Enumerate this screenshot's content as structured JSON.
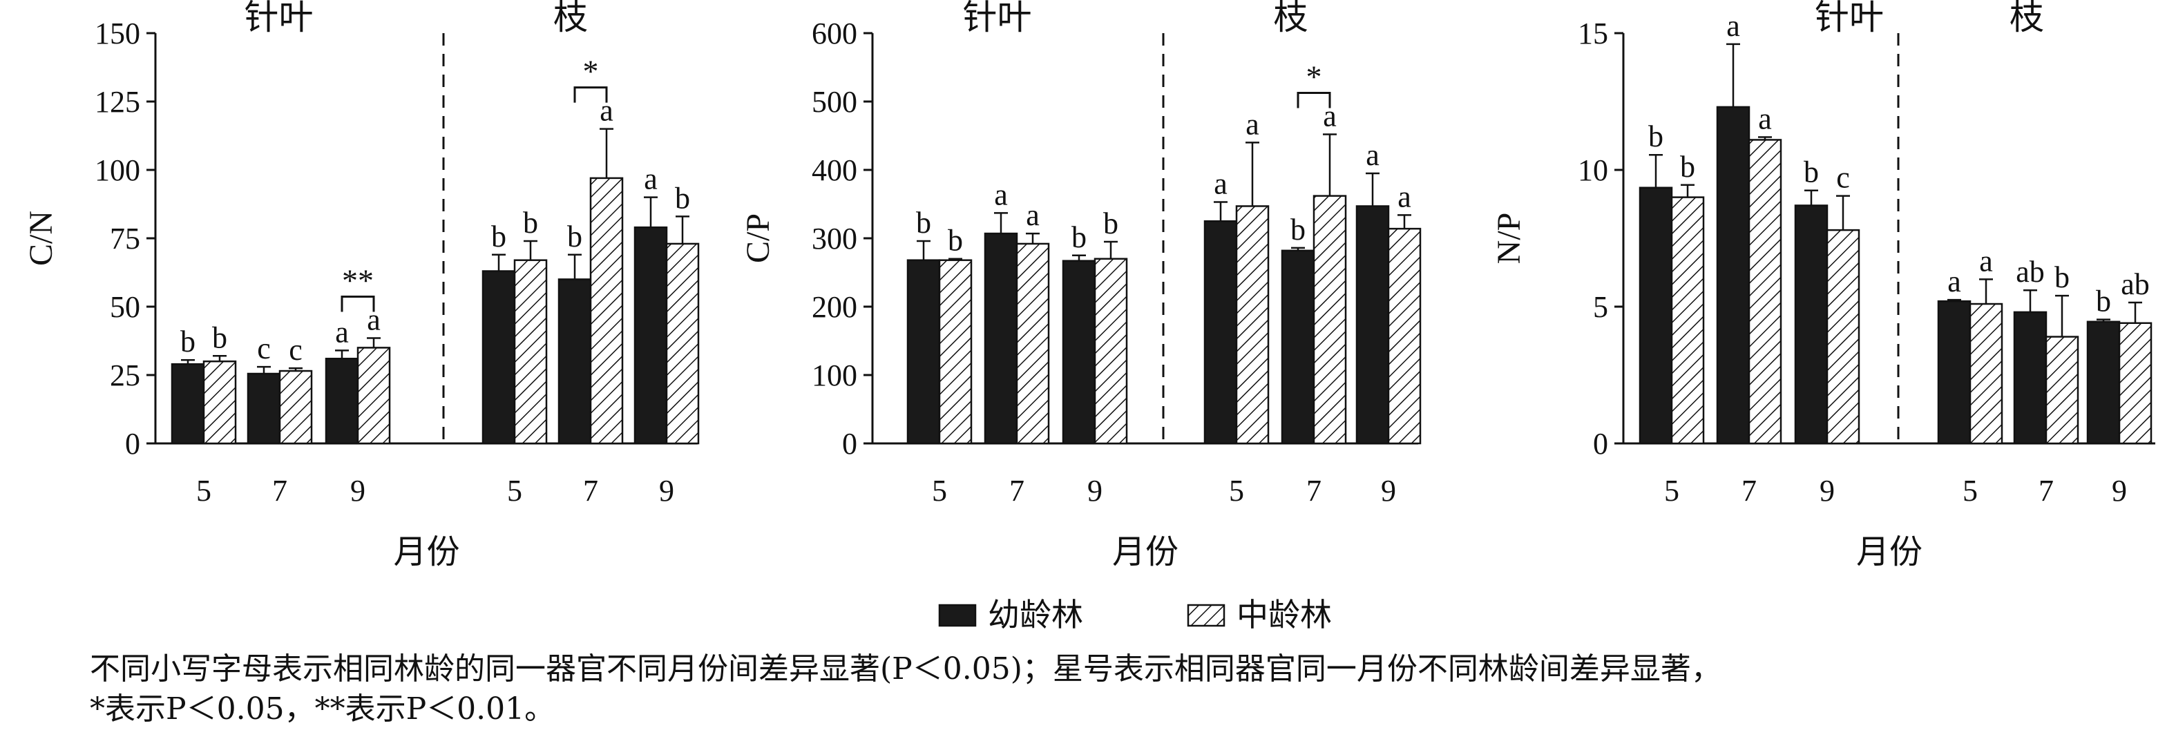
{
  "legend": [
    {
      "name": "幼龄林",
      "color": "#1a1a1a",
      "pattern": "solid"
    },
    {
      "name": "中龄林",
      "color": "#ffffff",
      "pattern": "hatched"
    }
  ],
  "caption": {
    "line1": "不同小写字母表示相同林龄的同一器官不同月份间差异显著(P＜0.05)；星号表示相同器官同一月份不同林龄间差异显著，",
    "line2": "*表示P＜0.05，**表示P＜0.01。"
  },
  "chart_data": [
    {
      "type": "bar",
      "ylabel": "C/N",
      "xlabel": "月份",
      "ylim": [
        0,
        150
      ],
      "yticks": [
        0,
        25,
        50,
        75,
        100,
        125,
        150
      ],
      "series_names": [
        "幼龄林",
        "中龄林"
      ],
      "groups": [
        {
          "label": "针叶",
          "categories": [
            "5",
            "7",
            "9"
          ],
          "series": [
            {
              "name": "幼龄林",
              "values": [
                29,
                25.5,
                31
              ],
              "errors": [
                1.5,
                2.5,
                3
              ],
              "letters": [
                "b",
                "c",
                "a"
              ]
            },
            {
              "name": "中龄林",
              "values": [
                30,
                26.5,
                35
              ],
              "errors": [
                2,
                1,
                3.5
              ],
              "letters": [
                "b",
                "c",
                "a"
              ]
            }
          ],
          "significance": [
            {
              "category": "9",
              "mark": "**"
            }
          ]
        },
        {
          "label": "枝",
          "categories": [
            "5",
            "7",
            "9"
          ],
          "series": [
            {
              "name": "幼龄林",
              "values": [
                63,
                60,
                79
              ],
              "errors": [
                6,
                9,
                11
              ],
              "letters": [
                "b",
                "b",
                "a"
              ]
            },
            {
              "name": "中龄林",
              "values": [
                67,
                97,
                73
              ],
              "errors": [
                7,
                18,
                10
              ],
              "letters": [
                "b",
                "a",
                "b"
              ]
            }
          ],
          "significance": [
            {
              "category": "7",
              "mark": "*"
            }
          ]
        }
      ]
    },
    {
      "type": "bar",
      "ylabel": "C/P",
      "xlabel": "月份",
      "ylim": [
        0,
        600
      ],
      "yticks": [
        0,
        100,
        200,
        300,
        400,
        500,
        600
      ],
      "series_names": [
        "幼龄林",
        "中龄林"
      ],
      "groups": [
        {
          "label": "针叶",
          "categories": [
            "5",
            "7",
            "9"
          ],
          "series": [
            {
              "name": "幼龄林",
              "values": [
                268,
                307,
                267
              ],
              "errors": [
                28,
                30,
                8
              ],
              "letters": [
                "b",
                "a",
                "b"
              ]
            },
            {
              "name": "中龄林",
              "values": [
                268,
                292,
                270
              ],
              "errors": [
                2,
                15,
                25
              ],
              "letters": [
                "b",
                "a",
                "b"
              ]
            }
          ],
          "significance": []
        },
        {
          "label": "枝",
          "categories": [
            "5",
            "7",
            "9"
          ],
          "series": [
            {
              "name": "幼龄林",
              "values": [
                325,
                282,
                347
              ],
              "errors": [
                28,
                4,
                48
              ],
              "letters": [
                "a",
                "b",
                "a"
              ]
            },
            {
              "name": "中龄林",
              "values": [
                347,
                362,
                314
              ],
              "errors": [
                93,
                90,
                20
              ],
              "letters": [
                "a",
                "a",
                "a"
              ]
            }
          ],
          "significance": [
            {
              "category": "7",
              "mark": "*"
            }
          ]
        }
      ]
    },
    {
      "type": "bar",
      "ylabel": "N/P",
      "xlabel": "月份",
      "ylim": [
        0,
        15
      ],
      "yticks": [
        0,
        5,
        10,
        15
      ],
      "series_names": [
        "幼龄林",
        "中龄林"
      ],
      "groups": [
        {
          "label": "针叶",
          "categories": [
            "5",
            "7",
            "9"
          ],
          "series": [
            {
              "name": "幼龄林",
              "values": [
                9.35,
                12.3,
                8.7
              ],
              "errors": [
                1.2,
                2.3,
                0.55
              ],
              "letters": [
                "b",
                "a",
                "b"
              ]
            },
            {
              "name": "中龄林",
              "values": [
                9.0,
                11.1,
                7.8
              ],
              "errors": [
                0.45,
                0.1,
                1.25
              ],
              "letters": [
                "b",
                "a",
                "c"
              ]
            }
          ],
          "significance": []
        },
        {
          "label": "枝",
          "categories": [
            "5",
            "7",
            "9"
          ],
          "series": [
            {
              "name": "幼龄林",
              "values": [
                5.2,
                4.8,
                4.45
              ],
              "errors": [
                0.05,
                0.8,
                0.08
              ],
              "letters": [
                "a",
                "ab",
                "b"
              ]
            },
            {
              "name": "中龄林",
              "values": [
                5.1,
                3.9,
                4.4
              ],
              "errors": [
                0.9,
                1.5,
                0.75
              ],
              "letters": [
                "a",
                "b",
                "ab"
              ]
            }
          ],
          "significance": []
        }
      ]
    }
  ]
}
